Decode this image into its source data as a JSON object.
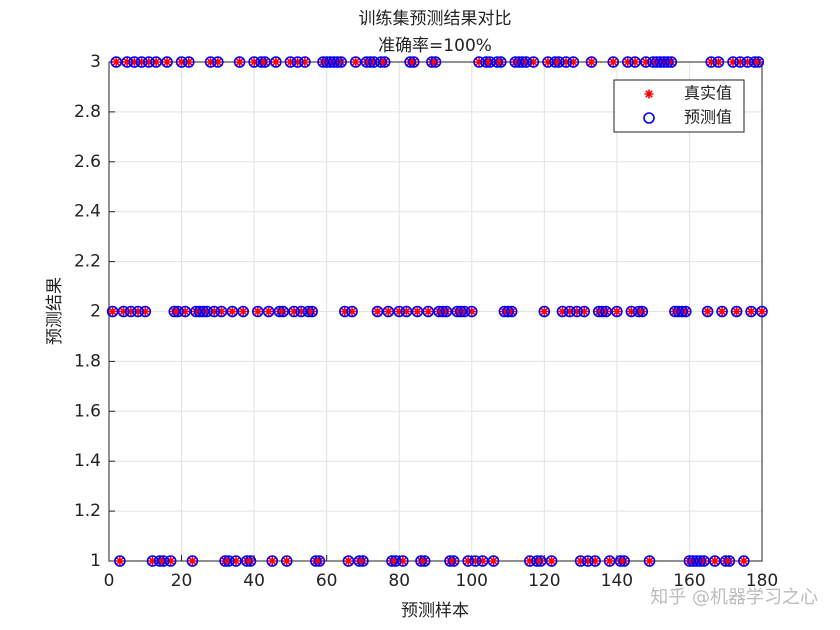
{
  "chart_data": {
    "type": "scatter",
    "title": "训练集预测结果对比",
    "subtitle": "准确率=100%",
    "xlabel": "预测样本",
    "ylabel": "预测结果",
    "watermark": "知乎 @机器学习之心",
    "xlim": [
      0,
      180
    ],
    "xticks": [
      0,
      20,
      40,
      60,
      80,
      100,
      120,
      140,
      160,
      180
    ],
    "ylim": [
      1,
      3
    ],
    "yticks": [
      1,
      1.2,
      1.4,
      1.6,
      1.8,
      2,
      2.2,
      2.4,
      2.6,
      2.8,
      3
    ],
    "grid": true,
    "legend": "northeast",
    "x": [
      1,
      2,
      3,
      4,
      5,
      6,
      7,
      8,
      9,
      10,
      11,
      12,
      13,
      14,
      15,
      16,
      17,
      18,
      19,
      20,
      21,
      22,
      23,
      24,
      25,
      26,
      27,
      28,
      29,
      30,
      31,
      32,
      33,
      34,
      35,
      36,
      37,
      38,
      39,
      40,
      41,
      42,
      43,
      44,
      45,
      46,
      47,
      48,
      49,
      50,
      51,
      52,
      53,
      54,
      55,
      56,
      57,
      58,
      59,
      60,
      61,
      62,
      63,
      64,
      65,
      66,
      67,
      68,
      69,
      70,
      71,
      72,
      73,
      74,
      75,
      76,
      77,
      78,
      79,
      80,
      81,
      82,
      83,
      84,
      85,
      86,
      87,
      88,
      89,
      90,
      91,
      92,
      93,
      94,
      95,
      96,
      97,
      98,
      99,
      100,
      101,
      102,
      103,
      104,
      105,
      106,
      107,
      108,
      109,
      110,
      111,
      112,
      113,
      114,
      115,
      116,
      117,
      118,
      119,
      120,
      121,
      122,
      123,
      124,
      125,
      126,
      127,
      128,
      129,
      130,
      131,
      132,
      133,
      134,
      135,
      136,
      137,
      138,
      139,
      140,
      141,
      142,
      143,
      144,
      145,
      146,
      147,
      148,
      149,
      150,
      151,
      152,
      153,
      154,
      155,
      156,
      157,
      158,
      159,
      160,
      161,
      162,
      163,
      164,
      165,
      166,
      167,
      168,
      169,
      170,
      171,
      172,
      173,
      174,
      175,
      176,
      177,
      178,
      179,
      180
    ],
    "series": [
      {
        "name": "真实值",
        "color": "#ff0000",
        "marker": "asterisk",
        "values": [
          2,
          3,
          1,
          2,
          3,
          2,
          3,
          2,
          3,
          2,
          3,
          1,
          3,
          1,
          1,
          3,
          1,
          2,
          2,
          3,
          2,
          3,
          1,
          2,
          2,
          2,
          2,
          3,
          2,
          3,
          2,
          1,
          1,
          2,
          1,
          3,
          2,
          1,
          1,
          3,
          2,
          3,
          3,
          2,
          1,
          3,
          2,
          2,
          1,
          3,
          2,
          3,
          2,
          3,
          2,
          2,
          1,
          1,
          3,
          3,
          3,
          3,
          3,
          3,
          2,
          1,
          2,
          3,
          1,
          1,
          3,
          3,
          3,
          2,
          3,
          3,
          2,
          1,
          1,
          2,
          1,
          2,
          3,
          3,
          2,
          1,
          1,
          2,
          3,
          3,
          2,
          2,
          2,
          1,
          1,
          2,
          2,
          2,
          1,
          2,
          1,
          3,
          1,
          3,
          3,
          1,
          3,
          3,
          2,
          2,
          2,
          3,
          3,
          3,
          3,
          1,
          3,
          1,
          1,
          2,
          3,
          1,
          3,
          3,
          2,
          3,
          2,
          3,
          2,
          1,
          2,
          1,
          3,
          1,
          2,
          2,
          2,
          1,
          3,
          2,
          1,
          1,
          3,
          2,
          3,
          2,
          2,
          3,
          1,
          3,
          3,
          3,
          3,
          3,
          3,
          2,
          2,
          2,
          2,
          1,
          1,
          1,
          1,
          1,
          2,
          3,
          1,
          3,
          2,
          1,
          1,
          3,
          2,
          3,
          1,
          3,
          2,
          3,
          3,
          2
        ]
      },
      {
        "name": "预测值",
        "color": "#0000ff",
        "marker": "circle",
        "values": [
          2,
          3,
          1,
          2,
          3,
          2,
          3,
          2,
          3,
          2,
          3,
          1,
          3,
          1,
          1,
          3,
          1,
          2,
          2,
          3,
          2,
          3,
          1,
          2,
          2,
          2,
          2,
          3,
          2,
          3,
          2,
          1,
          1,
          2,
          1,
          3,
          2,
          1,
          1,
          3,
          2,
          3,
          3,
          2,
          1,
          3,
          2,
          2,
          1,
          3,
          2,
          3,
          2,
          3,
          2,
          2,
          1,
          1,
          3,
          3,
          3,
          3,
          3,
          3,
          2,
          1,
          2,
          3,
          1,
          1,
          3,
          3,
          3,
          2,
          3,
          3,
          2,
          1,
          1,
          2,
          1,
          2,
          3,
          3,
          2,
          1,
          1,
          2,
          3,
          3,
          2,
          2,
          2,
          1,
          1,
          2,
          2,
          2,
          1,
          2,
          1,
          3,
          1,
          3,
          3,
          1,
          3,
          3,
          2,
          2,
          2,
          3,
          3,
          3,
          3,
          1,
          3,
          1,
          1,
          2,
          3,
          1,
          3,
          3,
          2,
          3,
          2,
          3,
          2,
          1,
          2,
          1,
          3,
          1,
          2,
          2,
          2,
          1,
          3,
          2,
          1,
          1,
          3,
          2,
          3,
          2,
          2,
          3,
          1,
          3,
          3,
          3,
          3,
          3,
          3,
          2,
          2,
          2,
          2,
          1,
          1,
          1,
          1,
          1,
          2,
          3,
          1,
          3,
          2,
          1,
          1,
          3,
          2,
          3,
          1,
          3,
          2,
          3,
          3,
          2
        ]
      }
    ]
  }
}
